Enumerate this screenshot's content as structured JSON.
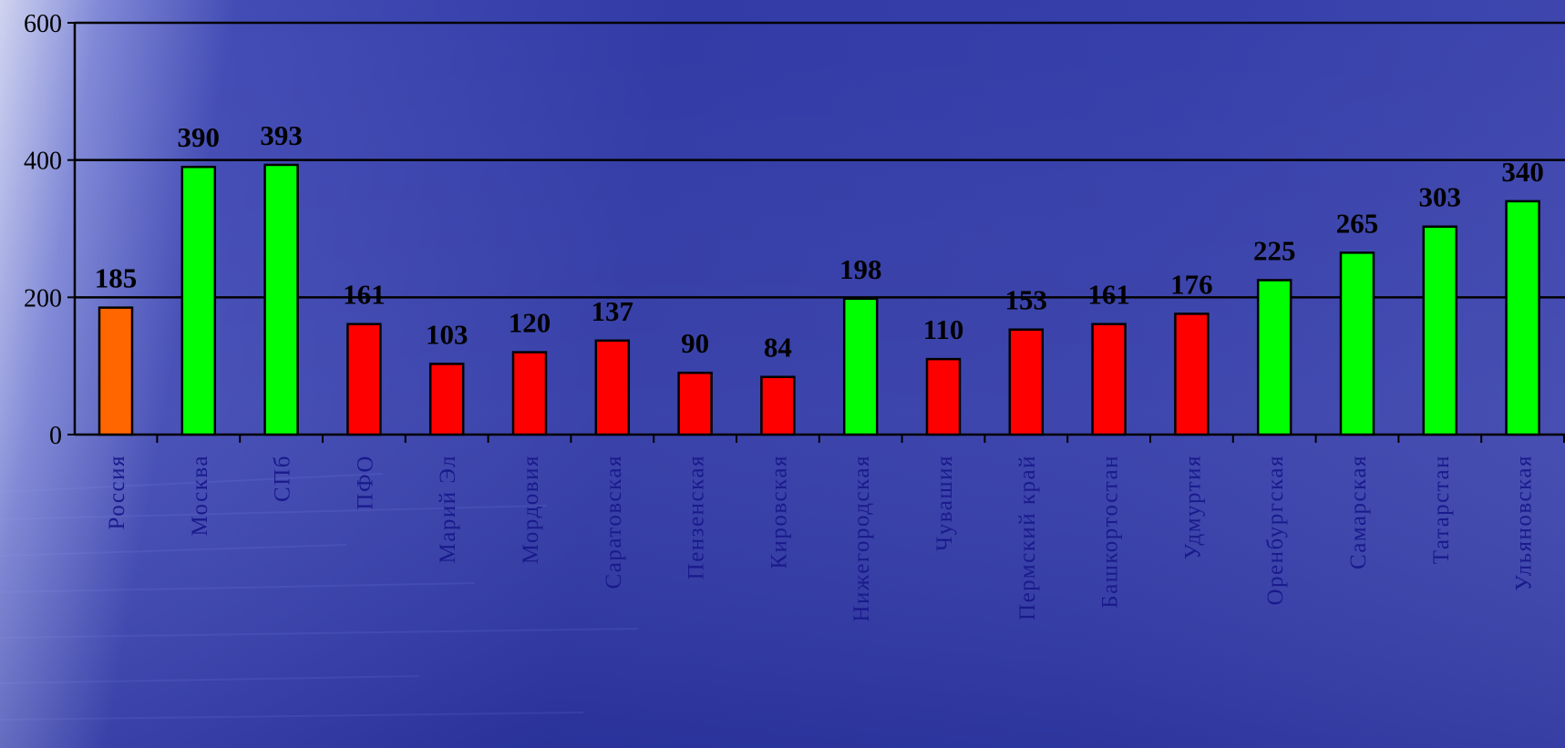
{
  "chart_data": {
    "type": "bar",
    "categories": [
      "Россия",
      "Москва",
      "СПб",
      "ПФО",
      "Марий Эл",
      "Мордовия",
      "Саратовская",
      "Пензенская",
      "Кировская",
      "Нижегородская",
      "Чувашия",
      "Пермский край",
      "Башкортостан",
      "Удмуртия",
      "Оренбургская",
      "Самарская",
      "Татарстан",
      "Ульяновская"
    ],
    "values": [
      185,
      390,
      393,
      161,
      103,
      120,
      137,
      90,
      84,
      198,
      110,
      153,
      161,
      176,
      225,
      265,
      303,
      340
    ],
    "value_labels": [
      "185",
      "390",
      "393",
      "161",
      "103",
      "120",
      "137",
      "90",
      "84",
      "198",
      "110",
      "153",
      "161",
      "176",
      "225",
      "265",
      "303",
      "340"
    ],
    "bar_colors": [
      "#ff6600",
      "#00ff00",
      "#00ff00",
      "#ff0000",
      "#ff0000",
      "#ff0000",
      "#ff0000",
      "#ff0000",
      "#ff0000",
      "#00ff00",
      "#ff0000",
      "#ff0000",
      "#ff0000",
      "#ff0000",
      "#00ff00",
      "#00ff00",
      "#00ff00",
      "#00ff00"
    ],
    "ylim": [
      0,
      600
    ],
    "yticks": [
      0,
      200,
      400,
      600
    ],
    "ytick_labels": [
      "0",
      "200",
      "400",
      "600"
    ],
    "grid": true,
    "title": "",
    "xlabel": "",
    "ylabel": "",
    "colors": {
      "grid": "#000000",
      "tick_label_y": "#000000",
      "tick_label_x": "#1a1a8c",
      "value_label": "#000000"
    }
  }
}
